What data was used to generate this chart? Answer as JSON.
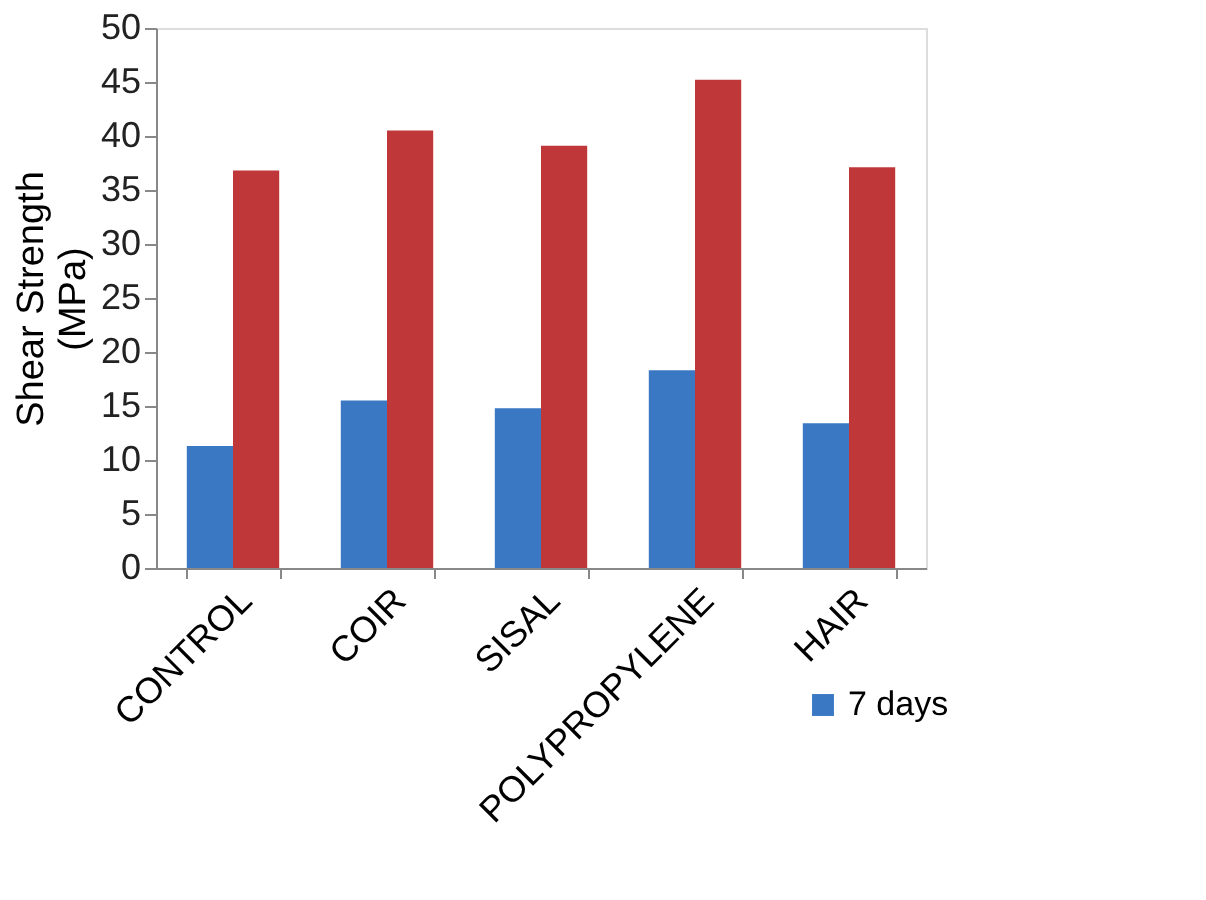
{
  "chart_data": {
    "type": "bar",
    "ylabel": "Shear Strength (MPa)",
    "categories": [
      "CONTROL",
      "COIR",
      "SISAL",
      "POLYPROPYLENE",
      "HAIR"
    ],
    "series": [
      {
        "name": "7 days",
        "color": "#3a78c4",
        "values": [
          11.3,
          15.5,
          14.8,
          18.3,
          13.4
        ]
      },
      {
        "color": "#c0373a",
        "values": [
          36.8,
          40.5,
          39.1,
          45.2,
          37.1
        ]
      }
    ],
    "ylim": [
      0,
      50
    ],
    "yticks": [
      0,
      5,
      10,
      15,
      20,
      25,
      30,
      35,
      40,
      45,
      50
    ],
    "grid": false,
    "legend": "bottom right"
  }
}
